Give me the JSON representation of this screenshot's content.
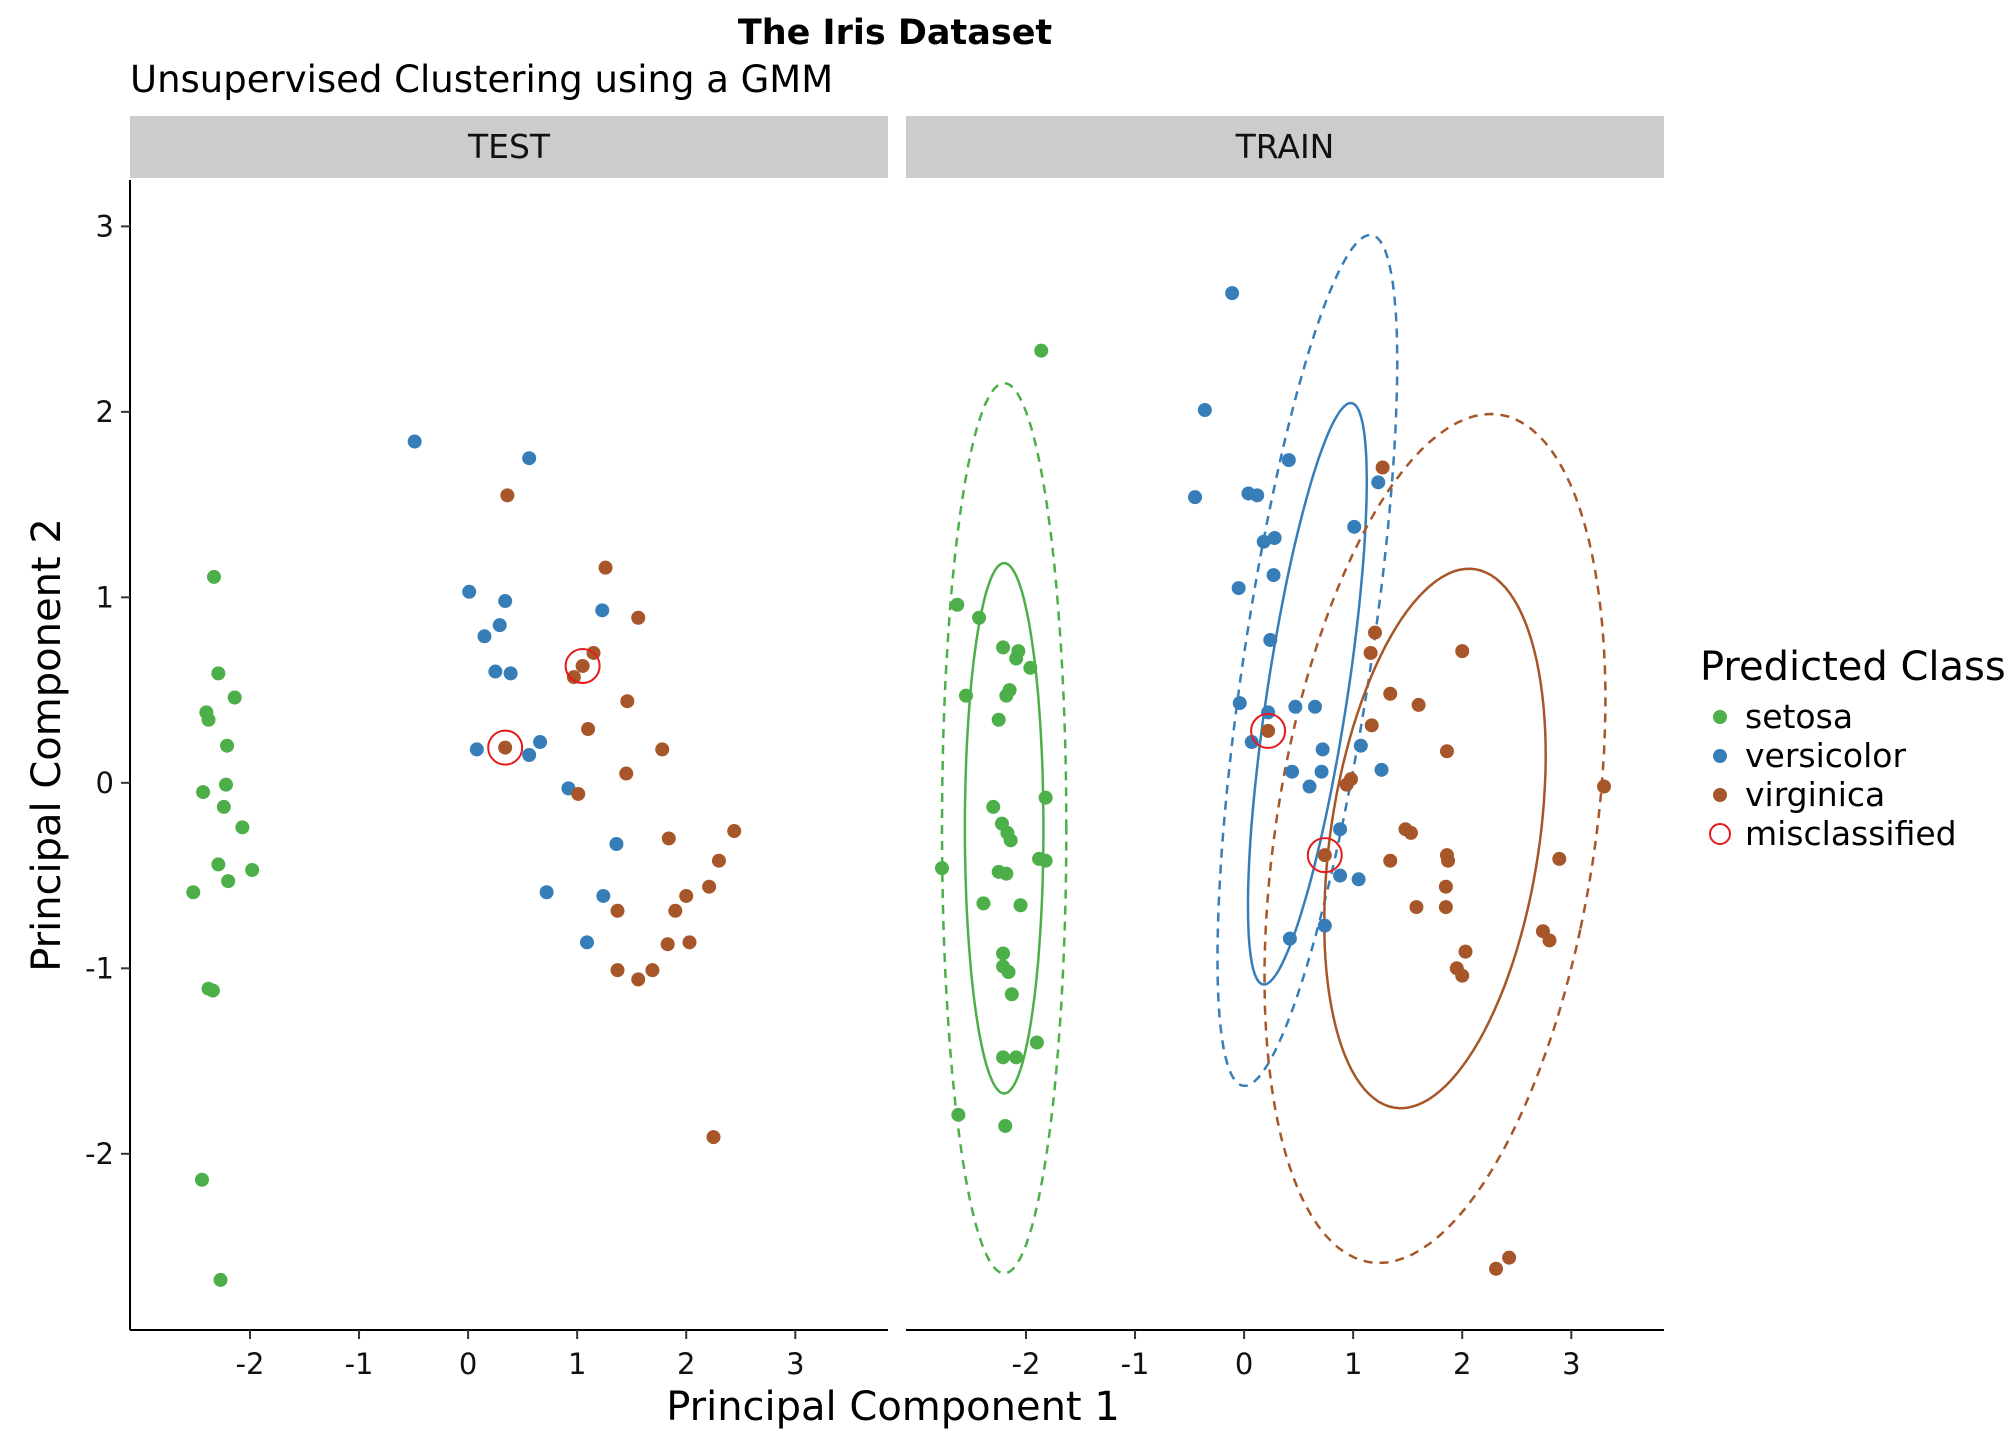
{
  "chart_data": {
    "type": "scatter",
    "title": "The Iris Dataset",
    "subtitle": "Unsupervised Clustering using a GMM",
    "xlabel": "Principal Component 1",
    "ylabel": "Principal Component 2",
    "xlim": [
      -3.1,
      3.85
    ],
    "ylim": [
      -2.95,
      3.25
    ],
    "x_ticks": [
      -2,
      -1,
      0,
      1,
      2,
      3
    ],
    "y_ticks": [
      -2,
      -1,
      0,
      1,
      2,
      3
    ],
    "x_tick_labels": [
      "-2",
      "-1",
      "0",
      "1",
      "2",
      "3"
    ],
    "y_tick_labels": [
      "-2",
      "-1",
      "0",
      "1",
      "2",
      "3"
    ],
    "legend": {
      "title": "Predicted Class",
      "position": "right",
      "entries": [
        {
          "name": "setosa",
          "color": "#4daf4a",
          "shape": "point"
        },
        {
          "name": "versicolor",
          "color": "#377eb8",
          "shape": "point"
        },
        {
          "name": "virginica",
          "color": "#a65628",
          "shape": "point"
        },
        {
          "name": "misclassified",
          "color": "#e41a1c",
          "shape": "open-circle"
        }
      ]
    },
    "grid": false,
    "panels": [
      {
        "label": "TEST",
        "points": [
          {
            "x": -2.33,
            "y": 1.11,
            "cls": "setosa"
          },
          {
            "x": -2.29,
            "y": 0.59,
            "cls": "setosa"
          },
          {
            "x": -2.4,
            "y": 0.38,
            "cls": "setosa"
          },
          {
            "x": -2.38,
            "y": 0.34,
            "cls": "setosa"
          },
          {
            "x": -2.14,
            "y": 0.46,
            "cls": "setosa"
          },
          {
            "x": -2.21,
            "y": 0.2,
            "cls": "setosa"
          },
          {
            "x": -2.43,
            "y": -0.05,
            "cls": "setosa"
          },
          {
            "x": -2.22,
            "y": -0.01,
            "cls": "setosa"
          },
          {
            "x": -2.24,
            "y": -0.13,
            "cls": "setosa"
          },
          {
            "x": -2.07,
            "y": -0.24,
            "cls": "setosa"
          },
          {
            "x": -2.29,
            "y": -0.44,
            "cls": "setosa"
          },
          {
            "x": -1.98,
            "y": -0.47,
            "cls": "setosa"
          },
          {
            "x": -2.2,
            "y": -0.53,
            "cls": "setosa"
          },
          {
            "x": -2.52,
            "y": -0.59,
            "cls": "setosa"
          },
          {
            "x": -2.38,
            "y": -1.11,
            "cls": "setosa"
          },
          {
            "x": -2.34,
            "y": -1.12,
            "cls": "setosa"
          },
          {
            "x": -2.44,
            "y": -2.14,
            "cls": "setosa"
          },
          {
            "x": -2.27,
            "y": -2.68,
            "cls": "setosa"
          },
          {
            "x": -0.49,
            "y": 1.84,
            "cls": "versicolor"
          },
          {
            "x": 0.56,
            "y": 1.75,
            "cls": "versicolor"
          },
          {
            "x": 0.01,
            "y": 1.03,
            "cls": "versicolor"
          },
          {
            "x": 0.34,
            "y": 0.98,
            "cls": "versicolor"
          },
          {
            "x": 0.29,
            "y": 0.85,
            "cls": "versicolor"
          },
          {
            "x": 0.15,
            "y": 0.79,
            "cls": "versicolor"
          },
          {
            "x": 1.23,
            "y": 0.93,
            "cls": "versicolor"
          },
          {
            "x": 0.25,
            "y": 0.6,
            "cls": "versicolor"
          },
          {
            "x": 0.39,
            "y": 0.59,
            "cls": "versicolor"
          },
          {
            "x": 0.08,
            "y": 0.18,
            "cls": "versicolor"
          },
          {
            "x": 0.56,
            "y": 0.15,
            "cls": "versicolor"
          },
          {
            "x": 0.66,
            "y": 0.22,
            "cls": "versicolor"
          },
          {
            "x": 0.92,
            "y": -0.03,
            "cls": "versicolor"
          },
          {
            "x": 1.36,
            "y": -0.33,
            "cls": "versicolor"
          },
          {
            "x": 0.72,
            "y": -0.59,
            "cls": "versicolor"
          },
          {
            "x": 1.24,
            "y": -0.61,
            "cls": "versicolor"
          },
          {
            "x": 1.09,
            "y": -0.86,
            "cls": "versicolor"
          },
          {
            "x": 0.36,
            "y": 1.55,
            "cls": "virginica"
          },
          {
            "x": 1.26,
            "y": 1.16,
            "cls": "virginica"
          },
          {
            "x": 1.56,
            "y": 0.89,
            "cls": "virginica"
          },
          {
            "x": 1.15,
            "y": 0.7,
            "cls": "virginica"
          },
          {
            "x": 1.05,
            "y": 0.63,
            "cls": "virginica"
          },
          {
            "x": 0.97,
            "y": 0.57,
            "cls": "virginica"
          },
          {
            "x": 1.46,
            "y": 0.44,
            "cls": "virginica"
          },
          {
            "x": 1.1,
            "y": 0.29,
            "cls": "virginica"
          },
          {
            "x": 0.34,
            "y": 0.19,
            "cls": "virginica"
          },
          {
            "x": 1.78,
            "y": 0.18,
            "cls": "virginica"
          },
          {
            "x": 1.45,
            "y": 0.05,
            "cls": "virginica"
          },
          {
            "x": 1.01,
            "y": -0.06,
            "cls": "virginica"
          },
          {
            "x": 2.44,
            "y": -0.26,
            "cls": "virginica"
          },
          {
            "x": 1.84,
            "y": -0.3,
            "cls": "virginica"
          },
          {
            "x": 2.3,
            "y": -0.42,
            "cls": "virginica"
          },
          {
            "x": 2.0,
            "y": -0.61,
            "cls": "virginica"
          },
          {
            "x": 2.21,
            "y": -0.56,
            "cls": "virginica"
          },
          {
            "x": 1.9,
            "y": -0.69,
            "cls": "virginica"
          },
          {
            "x": 1.37,
            "y": -0.69,
            "cls": "virginica"
          },
          {
            "x": 1.83,
            "y": -0.87,
            "cls": "virginica"
          },
          {
            "x": 2.03,
            "y": -0.86,
            "cls": "virginica"
          },
          {
            "x": 1.37,
            "y": -1.01,
            "cls": "virginica"
          },
          {
            "x": 1.69,
            "y": -1.01,
            "cls": "virginica"
          },
          {
            "x": 1.56,
            "y": -1.06,
            "cls": "virginica"
          },
          {
            "x": 2.25,
            "y": -1.91,
            "cls": "virginica"
          }
        ],
        "misclassified": [
          {
            "x": 1.05,
            "y": 0.63
          },
          {
            "x": 0.34,
            "y": 0.19
          }
        ],
        "ellipses": []
      },
      {
        "label": "TRAIN",
        "points": [
          {
            "x": -1.86,
            "y": 2.33,
            "cls": "setosa"
          },
          {
            "x": -2.63,
            "y": 0.96,
            "cls": "setosa"
          },
          {
            "x": -2.43,
            "y": 0.89,
            "cls": "setosa"
          },
          {
            "x": -2.21,
            "y": 0.73,
            "cls": "setosa"
          },
          {
            "x": -2.07,
            "y": 0.71,
            "cls": "setosa"
          },
          {
            "x": -2.09,
            "y": 0.67,
            "cls": "setosa"
          },
          {
            "x": -1.96,
            "y": 0.62,
            "cls": "setosa"
          },
          {
            "x": -2.15,
            "y": 0.5,
            "cls": "setosa"
          },
          {
            "x": -2.18,
            "y": 0.47,
            "cls": "setosa"
          },
          {
            "x": -2.55,
            "y": 0.47,
            "cls": "setosa"
          },
          {
            "x": -2.25,
            "y": 0.34,
            "cls": "setosa"
          },
          {
            "x": -2.3,
            "y": -0.13,
            "cls": "setosa"
          },
          {
            "x": -1.82,
            "y": -0.08,
            "cls": "setosa"
          },
          {
            "x": -2.22,
            "y": -0.22,
            "cls": "setosa"
          },
          {
            "x": -2.17,
            "y": -0.27,
            "cls": "setosa"
          },
          {
            "x": -2.14,
            "y": -0.31,
            "cls": "setosa"
          },
          {
            "x": -2.77,
            "y": -0.46,
            "cls": "setosa"
          },
          {
            "x": -2.25,
            "y": -0.48,
            "cls": "setosa"
          },
          {
            "x": -2.18,
            "y": -0.49,
            "cls": "setosa"
          },
          {
            "x": -1.88,
            "y": -0.41,
            "cls": "setosa"
          },
          {
            "x": -1.82,
            "y": -0.42,
            "cls": "setosa"
          },
          {
            "x": -2.39,
            "y": -0.65,
            "cls": "setosa"
          },
          {
            "x": -2.05,
            "y": -0.66,
            "cls": "setosa"
          },
          {
            "x": -2.21,
            "y": -0.92,
            "cls": "setosa"
          },
          {
            "x": -2.21,
            "y": -0.99,
            "cls": "setosa"
          },
          {
            "x": -2.16,
            "y": -1.02,
            "cls": "setosa"
          },
          {
            "x": -2.13,
            "y": -1.14,
            "cls": "setosa"
          },
          {
            "x": -1.9,
            "y": -1.4,
            "cls": "setosa"
          },
          {
            "x": -2.21,
            "y": -1.48,
            "cls": "setosa"
          },
          {
            "x": -2.09,
            "y": -1.48,
            "cls": "setosa"
          },
          {
            "x": -2.62,
            "y": -1.79,
            "cls": "setosa"
          },
          {
            "x": -2.19,
            "y": -1.85,
            "cls": "setosa"
          },
          {
            "x": -0.11,
            "y": 2.64,
            "cls": "versicolor"
          },
          {
            "x": -0.36,
            "y": 2.01,
            "cls": "versicolor"
          },
          {
            "x": 0.41,
            "y": 1.74,
            "cls": "versicolor"
          },
          {
            "x": 1.23,
            "y": 1.62,
            "cls": "versicolor"
          },
          {
            "x": -0.45,
            "y": 1.54,
            "cls": "versicolor"
          },
          {
            "x": 0.04,
            "y": 1.56,
            "cls": "versicolor"
          },
          {
            "x": 0.12,
            "y": 1.55,
            "cls": "versicolor"
          },
          {
            "x": 1.01,
            "y": 1.38,
            "cls": "versicolor"
          },
          {
            "x": 0.28,
            "y": 1.32,
            "cls": "versicolor"
          },
          {
            "x": 0.18,
            "y": 1.3,
            "cls": "versicolor"
          },
          {
            "x": 0.27,
            "y": 1.12,
            "cls": "versicolor"
          },
          {
            "x": -0.05,
            "y": 1.05,
            "cls": "versicolor"
          },
          {
            "x": 0.24,
            "y": 0.77,
            "cls": "versicolor"
          },
          {
            "x": -0.04,
            "y": 0.43,
            "cls": "versicolor"
          },
          {
            "x": 0.47,
            "y": 0.41,
            "cls": "versicolor"
          },
          {
            "x": 0.65,
            "y": 0.41,
            "cls": "versicolor"
          },
          {
            "x": 0.22,
            "y": 0.38,
            "cls": "versicolor"
          },
          {
            "x": 0.07,
            "y": 0.22,
            "cls": "versicolor"
          },
          {
            "x": 0.72,
            "y": 0.18,
            "cls": "versicolor"
          },
          {
            "x": 1.07,
            "y": 0.2,
            "cls": "versicolor"
          },
          {
            "x": 0.44,
            "y": 0.06,
            "cls": "versicolor"
          },
          {
            "x": 0.71,
            "y": 0.06,
            "cls": "versicolor"
          },
          {
            "x": 1.26,
            "y": 0.07,
            "cls": "versicolor"
          },
          {
            "x": 0.6,
            "y": -0.02,
            "cls": "versicolor"
          },
          {
            "x": 0.88,
            "y": -0.25,
            "cls": "versicolor"
          },
          {
            "x": 0.88,
            "y": -0.5,
            "cls": "versicolor"
          },
          {
            "x": 1.05,
            "y": -0.52,
            "cls": "versicolor"
          },
          {
            "x": 0.74,
            "y": -0.77,
            "cls": "versicolor"
          },
          {
            "x": 0.42,
            "y": -0.84,
            "cls": "versicolor"
          },
          {
            "x": 1.27,
            "y": 1.7,
            "cls": "virginica"
          },
          {
            "x": 1.2,
            "y": 0.81,
            "cls": "virginica"
          },
          {
            "x": 1.16,
            "y": 0.7,
            "cls": "virginica"
          },
          {
            "x": 2.0,
            "y": 0.71,
            "cls": "virginica"
          },
          {
            "x": 1.34,
            "y": 0.48,
            "cls": "virginica"
          },
          {
            "x": 1.6,
            "y": 0.42,
            "cls": "virginica"
          },
          {
            "x": 1.17,
            "y": 0.31,
            "cls": "virginica"
          },
          {
            "x": 0.22,
            "y": 0.28,
            "cls": "virginica"
          },
          {
            "x": 1.86,
            "y": 0.17,
            "cls": "virginica"
          },
          {
            "x": 0.98,
            "y": 0.02,
            "cls": "virginica"
          },
          {
            "x": 0.94,
            "y": -0.01,
            "cls": "virginica"
          },
          {
            "x": 3.3,
            "y": -0.02,
            "cls": "virginica"
          },
          {
            "x": 1.48,
            "y": -0.25,
            "cls": "virginica"
          },
          {
            "x": 1.53,
            "y": -0.27,
            "cls": "virginica"
          },
          {
            "x": 0.74,
            "y": -0.39,
            "cls": "virginica"
          },
          {
            "x": 1.34,
            "y": -0.42,
            "cls": "virginica"
          },
          {
            "x": 1.86,
            "y": -0.39,
            "cls": "virginica"
          },
          {
            "x": 1.87,
            "y": -0.42,
            "cls": "virginica"
          },
          {
            "x": 2.89,
            "y": -0.41,
            "cls": "virginica"
          },
          {
            "x": 1.85,
            "y": -0.56,
            "cls": "virginica"
          },
          {
            "x": 1.58,
            "y": -0.67,
            "cls": "virginica"
          },
          {
            "x": 1.85,
            "y": -0.67,
            "cls": "virginica"
          },
          {
            "x": 2.74,
            "y": -0.8,
            "cls": "virginica"
          },
          {
            "x": 2.8,
            "y": -0.85,
            "cls": "virginica"
          },
          {
            "x": 2.03,
            "y": -0.91,
            "cls": "virginica"
          },
          {
            "x": 1.95,
            "y": -1.0,
            "cls": "virginica"
          },
          {
            "x": 2.0,
            "y": -1.04,
            "cls": "virginica"
          },
          {
            "x": 2.43,
            "y": -2.56,
            "cls": "virginica"
          },
          {
            "x": 2.31,
            "y": -2.62,
            "cls": "virginica"
          }
        ],
        "misclassified": [
          {
            "x": 0.22,
            "y": 0.28
          },
          {
            "x": 0.74,
            "y": -0.39
          }
        ],
        "ellipses": [
          {
            "cls": "setosa",
            "style": "solid",
            "cx": -2.2,
            "cy": -0.245,
            "rx": 0.36,
            "ry": 1.43,
            "angle": 0
          },
          {
            "cls": "setosa",
            "style": "dashed",
            "cx": -2.2,
            "cy": -0.245,
            "rx": 0.57,
            "ry": 2.4,
            "angle": 0
          },
          {
            "cls": "versicolor",
            "style": "solid",
            "cx": 0.58,
            "cy": 0.48,
            "rx": 0.36,
            "ry": 1.62,
            "angle": 15
          },
          {
            "cls": "versicolor",
            "style": "dashed",
            "cx": 0.58,
            "cy": 0.66,
            "rx": 0.57,
            "ry": 2.37,
            "angle": 15
          },
          {
            "cls": "virginica",
            "style": "solid",
            "cx": 1.75,
            "cy": -0.3,
            "rx": 0.93,
            "ry": 1.51,
            "angle": 20
          },
          {
            "cls": "virginica",
            "style": "dashed",
            "cx": 1.75,
            "cy": -0.3,
            "rx": 1.42,
            "ry": 2.38,
            "angle": 20
          }
        ]
      }
    ]
  }
}
